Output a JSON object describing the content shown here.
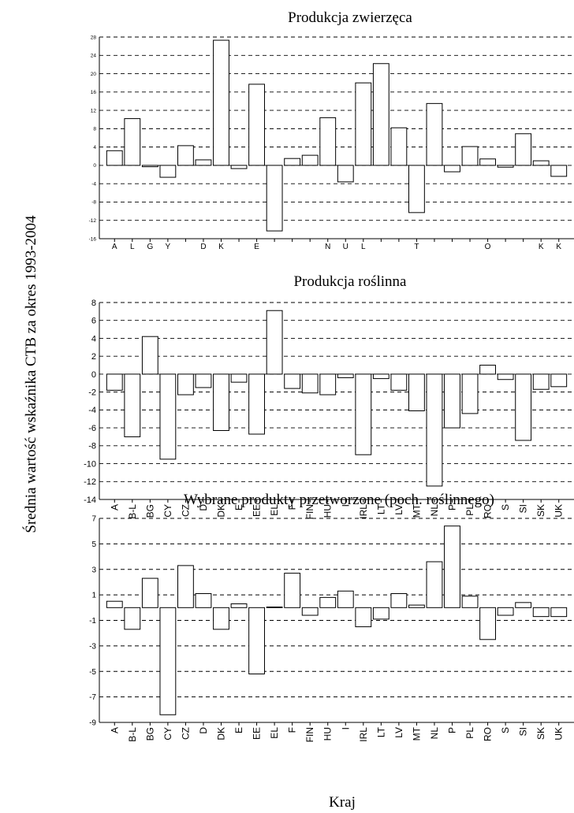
{
  "figure": {
    "ylabel": "Średnia wartość wskaźnika CTB za okres 1993-2004",
    "xlabel": "Kraj"
  },
  "chart_data": [
    {
      "type": "bar",
      "title": "Produkcja zwierzęca",
      "categories": [
        "A",
        "B-L",
        "BG",
        "CY",
        "CZ",
        "D",
        "DK",
        "E",
        "EE",
        "EL",
        "F",
        "FIN",
        "HU",
        "I",
        "IRL",
        "LT",
        "LV",
        "MT",
        "NL",
        "P",
        "PL",
        "RO",
        "S",
        "SI",
        "SK",
        "UK"
      ],
      "tick_labels_visible": [
        "A",
        "L",
        "G",
        "Y",
        "",
        "D",
        "K",
        "",
        "E",
        "",
        "",
        "",
        "N",
        "U",
        "L",
        "",
        "",
        "T",
        "",
        "",
        "",
        "O",
        "",
        "",
        "K",
        "K"
      ],
      "values": [
        3.2,
        10.2,
        -0.3,
        -2.6,
        4.3,
        1.2,
        27.3,
        -0.7,
        17.7,
        -14.3,
        1.5,
        2.2,
        10.4,
        -3.6,
        18.0,
        22.2,
        8.2,
        -10.3,
        13.5,
        -1.4,
        4.1,
        1.4,
        -0.4,
        6.9,
        1.0,
        -2.4
      ],
      "yticks": [
        28,
        24,
        20,
        16,
        12,
        8,
        4,
        0,
        -4,
        -8,
        -12,
        -16
      ],
      "ylim": [
        -16,
        28
      ],
      "grid": true
    },
    {
      "type": "bar",
      "title": "Produkcja roślinna",
      "categories": [
        "A",
        "B-L",
        "BG",
        "CY",
        "CZ",
        "D",
        "DK",
        "E",
        "EE",
        "EL",
        "F",
        "FIN",
        "HU",
        "I",
        "IRL",
        "LT",
        "LV",
        "MT",
        "NL",
        "P",
        "PL",
        "RO",
        "S",
        "SI",
        "SK",
        "UK"
      ],
      "values": [
        -1.8,
        -7.0,
        4.2,
        -9.5,
        -2.3,
        -1.5,
        -6.3,
        -0.9,
        -6.7,
        7.1,
        -1.6,
        -2.1,
        -2.3,
        -0.4,
        -9.0,
        -0.5,
        -1.8,
        -4.1,
        -12.5,
        -6.0,
        -4.4,
        1.0,
        -0.6,
        -7.4,
        -1.7,
        -1.4
      ],
      "yticks": [
        8,
        6,
        4,
        2,
        0,
        -2,
        -4,
        -6,
        -8,
        -10,
        -12,
        -14
      ],
      "ylim": [
        -14,
        8
      ],
      "grid": true
    },
    {
      "type": "bar",
      "title": "Wybrane produkty przetworzone (poch. roślinnego)",
      "categories": [
        "A",
        "B-L",
        "BG",
        "CY",
        "CZ",
        "D",
        "DK",
        "E",
        "EE",
        "EL",
        "F",
        "FIN",
        "HU",
        "I",
        "IRL",
        "LT",
        "LV",
        "MT",
        "NL",
        "P",
        "PL",
        "RO",
        "S",
        "SI",
        "SK",
        "UK"
      ],
      "values": [
        0.5,
        -1.7,
        2.3,
        -8.4,
        3.3,
        1.1,
        -1.7,
        0.3,
        -5.2,
        0.05,
        2.7,
        -0.6,
        0.8,
        1.3,
        -1.5,
        -0.9,
        1.1,
        0.2,
        3.6,
        6.4,
        0.9,
        -2.5,
        -0.6,
        0.4,
        -0.7,
        -0.7
      ],
      "yticks": [
        7,
        5,
        3,
        1,
        -1,
        -3,
        -5,
        -7,
        -9
      ],
      "ylim": [
        -9,
        7
      ],
      "grid": true
    }
  ]
}
